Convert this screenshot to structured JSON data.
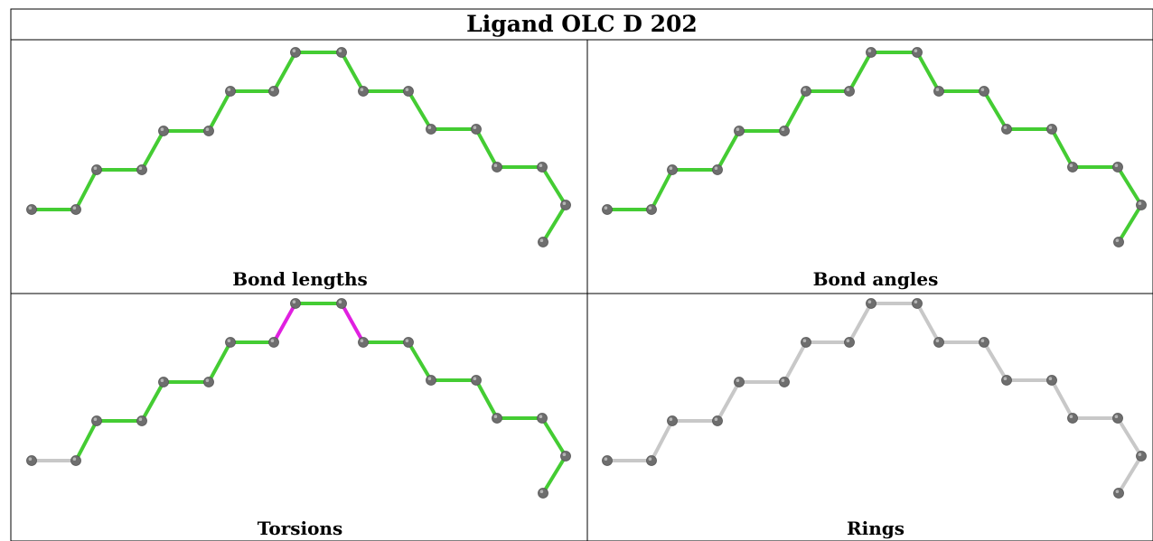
{
  "title": "Ligand OLC D 202",
  "colors": {
    "atom": "#6e6e6e",
    "atom_highlight": "#b5b5b5",
    "ok": "#44cc33",
    "outlier": "#e020e0",
    "not_assessed": "#c8c8c8",
    "grid": "#000000"
  },
  "panels": [
    {
      "label": "Bond lengths",
      "bond_status": [
        "ok",
        "ok",
        "ok",
        "ok",
        "ok",
        "ok",
        "ok",
        "ok",
        "ok",
        "ok",
        "ok",
        "ok",
        "ok",
        "ok",
        "ok",
        "ok",
        "ok",
        "ok",
        "ok",
        "ok"
      ]
    },
    {
      "label": "Bond angles",
      "bond_status": [
        "ok",
        "ok",
        "ok",
        "ok",
        "ok",
        "ok",
        "ok",
        "ok",
        "ok",
        "ok",
        "ok",
        "ok",
        "ok",
        "ok",
        "ok",
        "ok",
        "ok",
        "ok",
        "ok",
        "ok"
      ]
    },
    {
      "label": "Torsions",
      "bond_status": [
        "not_assessed",
        "ok",
        "ok",
        "ok",
        "ok",
        "ok",
        "ok",
        "outlier",
        "ok",
        "outlier",
        "ok",
        "ok",
        "ok",
        "ok",
        "ok",
        "ok",
        "ok",
        "ok",
        "ok",
        "not_assessed"
      ]
    },
    {
      "label": "Rings",
      "bond_status": [
        "not_assessed",
        "not_assessed",
        "not_assessed",
        "not_assessed",
        "not_assessed",
        "not_assessed",
        "not_assessed",
        "not_assessed",
        "not_assessed",
        "not_assessed",
        "not_assessed",
        "not_assessed",
        "not_assessed",
        "not_assessed",
        "not_assessed",
        "not_assessed",
        "not_assessed",
        "not_assessed",
        "not_assessed",
        "not_assessed"
      ]
    }
  ]
}
